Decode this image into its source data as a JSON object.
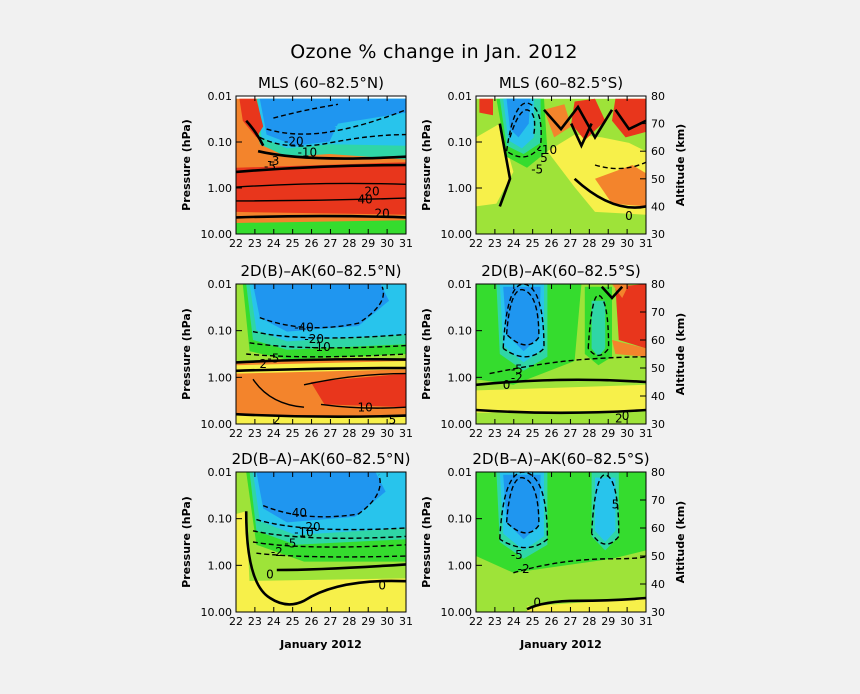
{
  "figure": {
    "title": "Ozone % change in Jan. 2012",
    "colors": {
      "background": "#f1f1f1",
      "red": "#e8361c",
      "orange": "#f3842c",
      "yellow": "#f7f04a",
      "green": "#35dc2e",
      "lightgreen": "#9ee339",
      "teal": "#2fd6a6",
      "cyan": "#28c4ec",
      "blue": "#1f96f0",
      "white": "#ffffff"
    }
  },
  "chart_data": [
    {
      "type": "heatmap",
      "title": "MLS (60–82.5°N)",
      "xlabel": "",
      "ylabel": "Pressure (hPa)",
      "y2label": "",
      "x_ticks": [
        "22",
        "23",
        "24",
        "25",
        "26",
        "27",
        "28",
        "29",
        "30",
        "31"
      ],
      "y_ticks": [
        "0.01",
        "0.10",
        "1.00",
        "10.00"
      ],
      "y2_ticks": [],
      "xlim": [
        22,
        31
      ],
      "ylim_hPa": [
        10.0,
        0.01
      ],
      "y_scale": "log",
      "contour_labels": [
        "-20",
        "-10",
        "-5",
        "-3",
        "40",
        "20",
        "20"
      ]
    },
    {
      "type": "heatmap",
      "title": "MLS (60–82.5°S)",
      "xlabel": "",
      "ylabel": "Pressure (hPa)",
      "y2label": "Altitude (km)",
      "x_ticks": [
        "22",
        "23",
        "24",
        "25",
        "26",
        "27",
        "28",
        "29",
        "30",
        "31"
      ],
      "y_ticks": [
        "0.01",
        "0.10",
        "1.00",
        "10.00"
      ],
      "y2_ticks": [
        "80",
        "70",
        "60",
        "50",
        "40",
        "30"
      ],
      "xlim": [
        22,
        31
      ],
      "ylim_hPa": [
        10.0,
        0.01
      ],
      "y_scale": "log",
      "contour_labels": [
        "-10",
        "-5",
        "5",
        "0"
      ]
    },
    {
      "type": "heatmap",
      "title": "2D(B)–AK(60–82.5°N)",
      "xlabel": "",
      "ylabel": "Pressure (hPa)",
      "y2label": "",
      "x_ticks": [
        "22",
        "23",
        "24",
        "25",
        "26",
        "27",
        "28",
        "29",
        "30",
        "31"
      ],
      "y_ticks": [
        "0.01",
        "0.10",
        "1.00",
        "10.00"
      ],
      "y2_ticks": [],
      "xlim": [
        22,
        31
      ],
      "ylim_hPa": [
        10.0,
        0.01
      ],
      "y_scale": "log",
      "contour_labels": [
        "-40",
        "-20",
        "-10",
        "-5",
        "2",
        "10",
        "2",
        "5"
      ]
    },
    {
      "type": "heatmap",
      "title": "2D(B)–AK(60–82.5°S)",
      "xlabel": "",
      "ylabel": "Pressure (hPa)",
      "y2label": "Altitude (km)",
      "x_ticks": [
        "22",
        "23",
        "24",
        "25",
        "26",
        "27",
        "28",
        "29",
        "30",
        "31"
      ],
      "y_ticks": [
        "0.01",
        "0.10",
        "1.00",
        "10.00"
      ],
      "y2_ticks": [
        "80",
        "70",
        "60",
        "50",
        "40",
        "30"
      ],
      "xlim": [
        22,
        31
      ],
      "ylim_hPa": [
        10.0,
        0.01
      ],
      "y_scale": "log",
      "contour_labels": [
        "-5",
        "-2",
        "0",
        "0",
        "2"
      ]
    },
    {
      "type": "heatmap",
      "title": "2D(B–A)–AK(60–82.5°N)",
      "xlabel": "January 2012",
      "ylabel": "Pressure (hPa)",
      "y2label": "",
      "x_ticks": [
        "22",
        "23",
        "24",
        "25",
        "26",
        "27",
        "28",
        "29",
        "30",
        "31"
      ],
      "y_ticks": [
        "0.01",
        "0.10",
        "1.00",
        "10.00"
      ],
      "y2_ticks": [],
      "xlim": [
        22,
        31
      ],
      "ylim_hPa": [
        10.0,
        0.01
      ],
      "y_scale": "log",
      "contour_labels": [
        "-40",
        "-20",
        "-10",
        "-5",
        "-2",
        "0",
        "0"
      ]
    },
    {
      "type": "heatmap",
      "title": "2D(B–A)–AK(60–82.5°S)",
      "xlabel": "January 2012",
      "ylabel": "Pressure (hPa)",
      "y2label": "Altitude (km)",
      "x_ticks": [
        "22",
        "23",
        "24",
        "25",
        "26",
        "27",
        "28",
        "29",
        "30",
        "31"
      ],
      "y_ticks": [
        "0.01",
        "0.10",
        "1.00",
        "10.00"
      ],
      "y2_ticks": [
        "80",
        "70",
        "60",
        "50",
        "40",
        "30"
      ],
      "xlim": [
        22,
        31
      ],
      "ylim_hPa": [
        10.0,
        0.01
      ],
      "y_scale": "log",
      "contour_labels": [
        "-5",
        "-2",
        "5",
        "0"
      ]
    }
  ]
}
